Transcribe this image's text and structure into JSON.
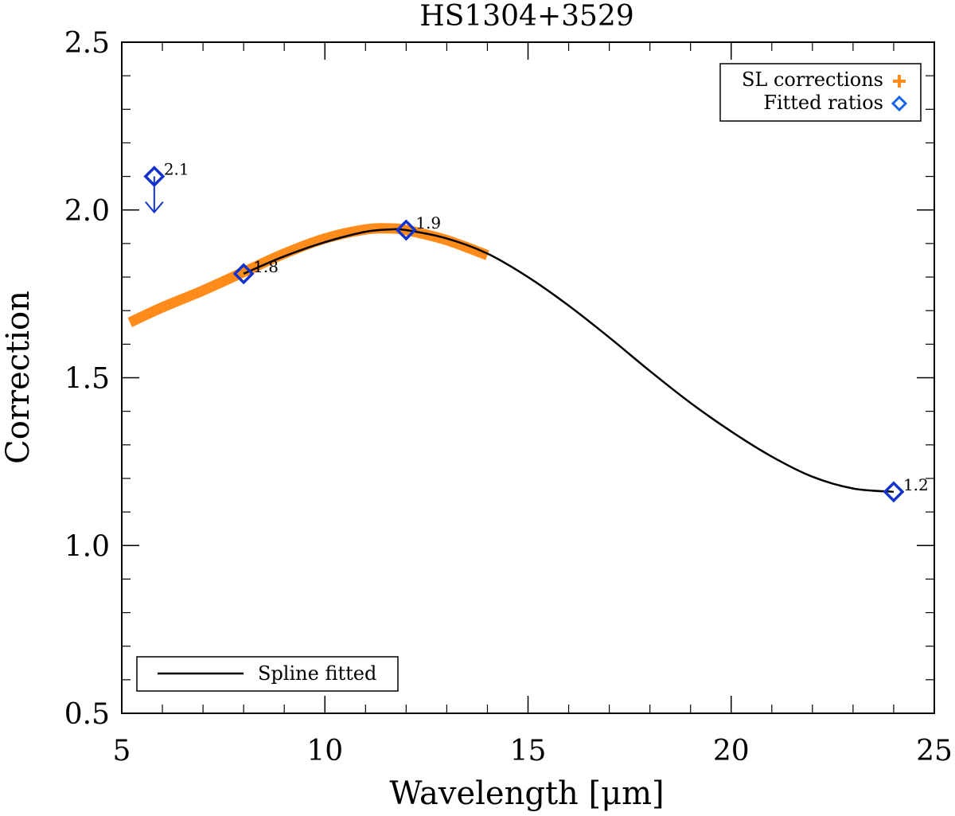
{
  "chart_data": {
    "type": "line",
    "title": "HS1304+3529",
    "xlabel": "Wavelength [μm]",
    "ylabel": "Correction",
    "xlim": [
      5,
      25
    ],
    "ylim": [
      0.5,
      2.5
    ],
    "xticks": [
      5,
      10,
      15,
      20,
      25
    ],
    "xtick_labels": [
      "5",
      "10",
      "15",
      "20",
      "25"
    ],
    "yticks": [
      0.5,
      1.0,
      1.5,
      2.0,
      2.5
    ],
    "ytick_labels": [
      "0.5",
      "1.0",
      "1.5",
      "2.0",
      "2.5"
    ],
    "grid": false,
    "series": [
      {
        "name": "SL corrections",
        "kind": "band",
        "marker": "+",
        "color": "#ff8c1a",
        "x": [
          5.2,
          6,
          7,
          8,
          9,
          10,
          11,
          11.6,
          12,
          13,
          14
        ],
        "y": [
          1.665,
          1.71,
          1.76,
          1.815,
          1.87,
          1.915,
          1.942,
          1.945,
          1.94,
          1.91,
          1.865
        ]
      },
      {
        "name": "Fitted ratios",
        "kind": "points",
        "marker": "diamond",
        "color": "#1133cc",
        "x": [
          5.8,
          8,
          12,
          24
        ],
        "y": [
          2.1,
          1.81,
          1.94,
          1.16
        ],
        "labels": [
          "2.1",
          "1.8",
          "1.9",
          "1.2"
        ],
        "upper_limit_index": 0
      },
      {
        "name": "Spline fitted",
        "kind": "line",
        "color": "#000000",
        "x": [
          8,
          9,
          10,
          11,
          11.6,
          12,
          13,
          14,
          15,
          16,
          17,
          18,
          19,
          20,
          21,
          22,
          23,
          24
        ],
        "y": [
          1.81,
          1.862,
          1.904,
          1.935,
          1.942,
          1.94,
          1.915,
          1.87,
          1.8,
          1.715,
          1.62,
          1.52,
          1.425,
          1.34,
          1.265,
          1.205,
          1.17,
          1.16
        ]
      }
    ],
    "legends": [
      {
        "position": "top-right",
        "entries": [
          "SL corrections",
          "Fitted ratios"
        ]
      },
      {
        "position": "bottom-left",
        "entries": [
          "Spline fitted"
        ]
      }
    ]
  }
}
